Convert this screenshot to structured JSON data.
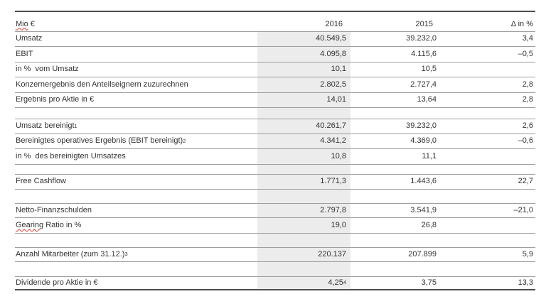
{
  "style": {
    "text_color": "#333333",
    "highlight_column_bg": "#ececec",
    "row_line_color": "#9e9e9e",
    "frame_line_color": "#4d4d4d",
    "spellcheck_underline_color": "#dd3a28"
  },
  "table": {
    "header": {
      "unit_word": "Mio",
      "unit_rest": " €",
      "col_2016": "2016",
      "col_2015": "2015",
      "col_delta": "Δ in %"
    },
    "rows": [
      {
        "label": "Umsatz",
        "v2016": "40.549,5",
        "v2015": "39.232,0",
        "delta": "3,4"
      },
      {
        "label": "EBIT",
        "v2016": "4.095,8",
        "v2015": "4.115,6",
        "delta": "–0,5"
      },
      {
        "label": "in %  vom Umsatz",
        "v2016": "10,1",
        "v2015": "10,5",
        "delta": ""
      },
      {
        "label": "Konzernergebnis den Anteilseignern zuzurechnen",
        "v2016": "2.802,5",
        "v2015": "2.727,4",
        "delta": "2,8"
      },
      {
        "label": "Ergebnis pro Aktie in €",
        "v2016": "14,01",
        "v2015": "13,64",
        "delta": "2,8"
      },
      {
        "label": "Umsatz bereinigt",
        "label_sup": "1",
        "v2016": "40.261,7",
        "v2015": "39.232,0",
        "delta": "2,6"
      },
      {
        "label": "Bereinigtes operatives Ergebnis (EBIT bereinigt)",
        "label_sup": "2",
        "v2016": "4.341,2",
        "v2015": "4.369,0",
        "delta": "–0,6"
      },
      {
        "label": "in %  des bereinigten Umsatzes",
        "v2016": "10,8",
        "v2015": "11,1",
        "delta": ""
      },
      {
        "label": "Free Cashflow",
        "v2016": "1.771,3",
        "v2015": "1.443,6",
        "delta": "22,7"
      },
      {
        "label": "Netto-Finanzschulden",
        "v2016": "2.797,8",
        "v2015": "3.541,9",
        "delta": "–21,0"
      },
      {
        "misspelled": "Gearing",
        "label": " Ratio in %",
        "v2016": "19,0",
        "v2015": "26,8",
        "delta": ""
      },
      {
        "label": "Anzahl Mitarbeiter (zum 31.12.)",
        "label_sup": "3",
        "v2016": "220.137",
        "v2015": "207.899",
        "delta": "5,9"
      },
      {
        "label": "Dividende pro Aktie in €",
        "v2016": "4,25",
        "v2016_sup": "4",
        "v2015": "3,75",
        "delta": "13,3"
      }
    ]
  }
}
